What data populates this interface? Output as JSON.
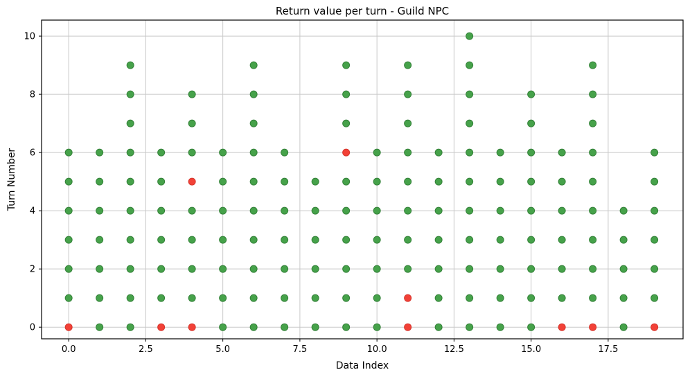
{
  "chart_data": {
    "type": "scatter",
    "title": "Return value per turn - Guild NPC",
    "xlabel": "Data Index",
    "ylabel": "Turn Number",
    "xlim": [
      -0.88,
      19.93
    ],
    "ylim": [
      -0.4,
      10.55
    ],
    "x_ticks": [
      0,
      2.5,
      5,
      7.5,
      10,
      12.5,
      15,
      17.5
    ],
    "x_tick_labels": [
      "0.0",
      "2.5",
      "5.0",
      "7.5",
      "10.0",
      "12.5",
      "15.0",
      "17.5"
    ],
    "y_ticks": [
      0,
      2,
      4,
      6,
      8,
      10
    ],
    "y_tick_labels": [
      "0",
      "2",
      "4",
      "6",
      "8",
      "10"
    ],
    "grid": true,
    "grid_color": "#c8c8c8",
    "spine_color": "#000000",
    "background": "#ffffff",
    "legend": "none",
    "marker_radius": 5,
    "series": [
      {
        "name": "green",
        "color": "#46a24a",
        "edge_color": "#338038",
        "points_by_turn": {
          "0": [
            1,
            2,
            5,
            6,
            7,
            8,
            9,
            10,
            12,
            13,
            14,
            15,
            18
          ],
          "1": [
            0,
            1,
            2,
            3,
            4,
            5,
            6,
            7,
            8,
            9,
            10,
            12,
            13,
            14,
            15,
            16,
            17,
            18,
            19
          ],
          "2": [
            0,
            1,
            2,
            3,
            4,
            5,
            6,
            7,
            8,
            9,
            10,
            11,
            12,
            13,
            14,
            15,
            16,
            17,
            18,
            19
          ],
          "3": [
            0,
            1,
            2,
            3,
            4,
            5,
            6,
            7,
            8,
            9,
            10,
            11,
            12,
            13,
            14,
            15,
            16,
            17,
            18,
            19
          ],
          "4": [
            0,
            1,
            2,
            3,
            4,
            5,
            6,
            7,
            8,
            9,
            10,
            11,
            12,
            13,
            14,
            15,
            16,
            17,
            18,
            19
          ],
          "5": [
            0,
            1,
            2,
            3,
            5,
            6,
            7,
            8,
            9,
            10,
            11,
            12,
            13,
            14,
            15,
            16,
            17,
            19
          ],
          "6": [
            0,
            1,
            2,
            3,
            4,
            5,
            6,
            7,
            10,
            11,
            12,
            13,
            14,
            15,
            16,
            17,
            19
          ],
          "7": [
            2,
            4,
            6,
            9,
            11,
            13,
            15,
            17
          ],
          "8": [
            2,
            4,
            6,
            9,
            11,
            13,
            15,
            17
          ],
          "9": [
            2,
            6,
            9,
            11,
            13,
            17
          ],
          "10": [
            13
          ]
        }
      },
      {
        "name": "red",
        "color": "#f24137",
        "edge_color": "#d6352c",
        "points_by_turn": {
          "0": [
            0,
            3,
            4,
            11,
            16,
            17,
            19
          ],
          "1": [
            11
          ],
          "5": [
            4
          ],
          "6": [
            9
          ]
        }
      }
    ]
  }
}
